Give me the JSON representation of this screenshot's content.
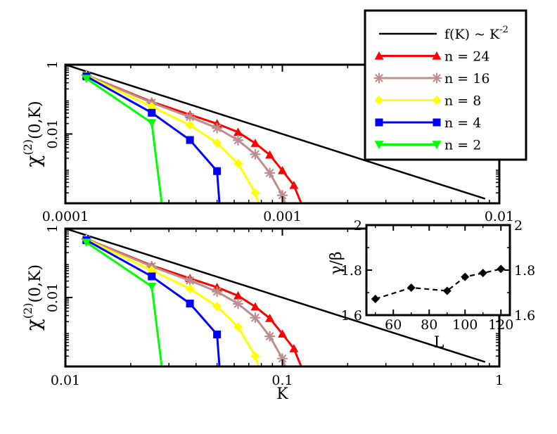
{
  "chart_data": [
    {
      "type": "line",
      "panel": "top",
      "xscale": "log",
      "yscale": "log",
      "xlim": [
        0.0001,
        0.01
      ],
      "ylim": [
        0.0001,
        1
      ],
      "x_ticks": [
        0.0001,
        0.001,
        0.01
      ],
      "x_tick_labels": [
        "0.0001",
        "0.001",
        "0.01"
      ],
      "y_ticks": [
        0.01,
        1
      ],
      "y_tick_labels": [
        "0.01",
        "1"
      ],
      "ylabel_main": "χ",
      "ylabel_sup": "(2)",
      "ylabel_args": "(0,K)",
      "reference_line": {
        "name": "f(K) ~ K^-2",
        "x": [
          0.0001,
          0.0086
        ],
        "y": [
          1,
          0.000135
        ]
      },
      "series": [
        {
          "name": "n = 24",
          "color": "#ff0000",
          "marker": "triangle-up",
          "x": [
            0.000125,
            0.00025,
            0.000375,
            0.0005,
            0.000625,
            0.00075,
            0.000875,
            0.001,
            0.00113,
            0.00125
          ],
          "y": [
            0.5,
            0.085,
            0.036,
            0.0198,
            0.0113,
            0.0054,
            0.0025,
            0.00088,
            0.00033,
            7e-05
          ]
        },
        {
          "name": "n = 16",
          "color": "#bc8f8f",
          "marker": "star",
          "x": [
            0.000125,
            0.00025,
            0.000375,
            0.0005,
            0.000625,
            0.00075,
            0.000875,
            0.001,
            0.00105
          ],
          "y": [
            0.5,
            0.08,
            0.031,
            0.0148,
            0.0066,
            0.0026,
            0.00075,
            0.00017,
            7e-05
          ]
        },
        {
          "name": "n = 8",
          "color": "#ffff00",
          "marker": "diamond",
          "x": [
            0.000125,
            0.00025,
            0.000375,
            0.0005,
            0.000625,
            0.00075,
            0.00079
          ],
          "y": [
            0.48,
            0.062,
            0.018,
            0.0055,
            0.0014,
            0.0002,
            7e-05
          ]
        },
        {
          "name": "n = 4",
          "color": "#0000ff",
          "marker": "square",
          "x": [
            0.000125,
            0.00025,
            0.000375,
            0.0005,
            0.000515
          ],
          "y": [
            0.46,
            0.041,
            0.0067,
            0.00085,
            7e-05
          ]
        },
        {
          "name": "n = 2",
          "color": "#00ff00",
          "marker": "triangle-down",
          "x": [
            0.000125,
            0.00025,
            0.00028
          ],
          "y": [
            0.4,
            0.021,
            7e-05
          ]
        }
      ]
    },
    {
      "type": "line",
      "panel": "bottom",
      "xscale": "log",
      "yscale": "log",
      "xlim": [
        0.01,
        1
      ],
      "ylim": [
        0.0001,
        1
      ],
      "x_ticks": [
        0.01,
        0.1,
        1
      ],
      "x_tick_labels": [
        "0.01",
        "0.1",
        "1"
      ],
      "y_ticks": [
        0.01,
        1
      ],
      "y_tick_labels": [
        "0.01",
        "1"
      ],
      "xlabel": "K",
      "ylabel_main": "χ",
      "ylabel_sup": "(2)",
      "ylabel_args": "(0,K)",
      "reference_line": {
        "name": "f(K) ~ K^-2",
        "x": [
          0.01,
          0.86
        ],
        "y": [
          1,
          0.000135
        ]
      },
      "series": [
        {
          "name": "n = 24",
          "color": "#ff0000",
          "marker": "triangle-up",
          "x": [
            0.0125,
            0.025,
            0.0375,
            0.05,
            0.0625,
            0.075,
            0.0875,
            0.1,
            0.113,
            0.125
          ],
          "y": [
            0.5,
            0.085,
            0.036,
            0.0198,
            0.0113,
            0.0054,
            0.0025,
            0.00088,
            0.00033,
            7e-05
          ]
        },
        {
          "name": "n = 16",
          "color": "#bc8f8f",
          "marker": "star",
          "x": [
            0.0125,
            0.025,
            0.0375,
            0.05,
            0.0625,
            0.075,
            0.0875,
            0.1,
            0.105
          ],
          "y": [
            0.5,
            0.08,
            0.031,
            0.0148,
            0.0066,
            0.0026,
            0.00075,
            0.00017,
            7e-05
          ]
        },
        {
          "name": "n = 8",
          "color": "#ffff00",
          "marker": "diamond",
          "x": [
            0.0125,
            0.025,
            0.0375,
            0.05,
            0.0625,
            0.075,
            0.079
          ],
          "y": [
            0.48,
            0.062,
            0.018,
            0.0055,
            0.0014,
            0.0002,
            7e-05
          ]
        },
        {
          "name": "n = 4",
          "color": "#0000ff",
          "marker": "square",
          "x": [
            0.0125,
            0.025,
            0.0375,
            0.05,
            0.0515
          ],
          "y": [
            0.46,
            0.041,
            0.0067,
            0.00085,
            7e-05
          ]
        },
        {
          "name": "n = 2",
          "color": "#00ff00",
          "marker": "triangle-down",
          "x": [
            0.0125,
            0.025,
            0.028
          ],
          "y": [
            0.4,
            0.021,
            7e-05
          ]
        }
      ]
    },
    {
      "type": "line",
      "panel": "inset",
      "xlabel": "L",
      "ylabel": "γ/β",
      "xlim": [
        45,
        125
      ],
      "ylim": [
        1.6,
        2.0
      ],
      "x_ticks": [
        60,
        80,
        100,
        120
      ],
      "x_tick_labels": [
        "60",
        "80",
        "100",
        "120"
      ],
      "y_ticks": [
        1.6,
        1.8,
        2.0
      ],
      "y_tick_labels_left": [
        "1.6",
        "1.8",
        "2"
      ],
      "y_tick_labels_right": [
        "1.6",
        "1.8",
        "2"
      ],
      "line_style": "dashed",
      "series": [
        {
          "name": "γ/β",
          "color": "#000000",
          "marker": "diamond",
          "x": [
            50,
            70,
            90,
            100,
            110,
            120
          ],
          "y": [
            1.672,
            1.722,
            1.708,
            1.77,
            1.787,
            1.805
          ]
        }
      ]
    }
  ],
  "legend": {
    "placement": "top-right",
    "reference_label": "f(K) ~ K",
    "reference_exponent": "-2",
    "entries": [
      {
        "label": "n = 24",
        "color": "#ff0000",
        "marker": "triangle-up"
      },
      {
        "label": "n = 16",
        "color": "#bc8f8f",
        "marker": "star"
      },
      {
        "label": "n = 8",
        "color": "#ffff00",
        "marker": "diamond"
      },
      {
        "label": "n = 4",
        "color": "#0000ff",
        "marker": "square"
      },
      {
        "label": "n = 2",
        "color": "#00ff00",
        "marker": "triangle-down"
      }
    ]
  }
}
